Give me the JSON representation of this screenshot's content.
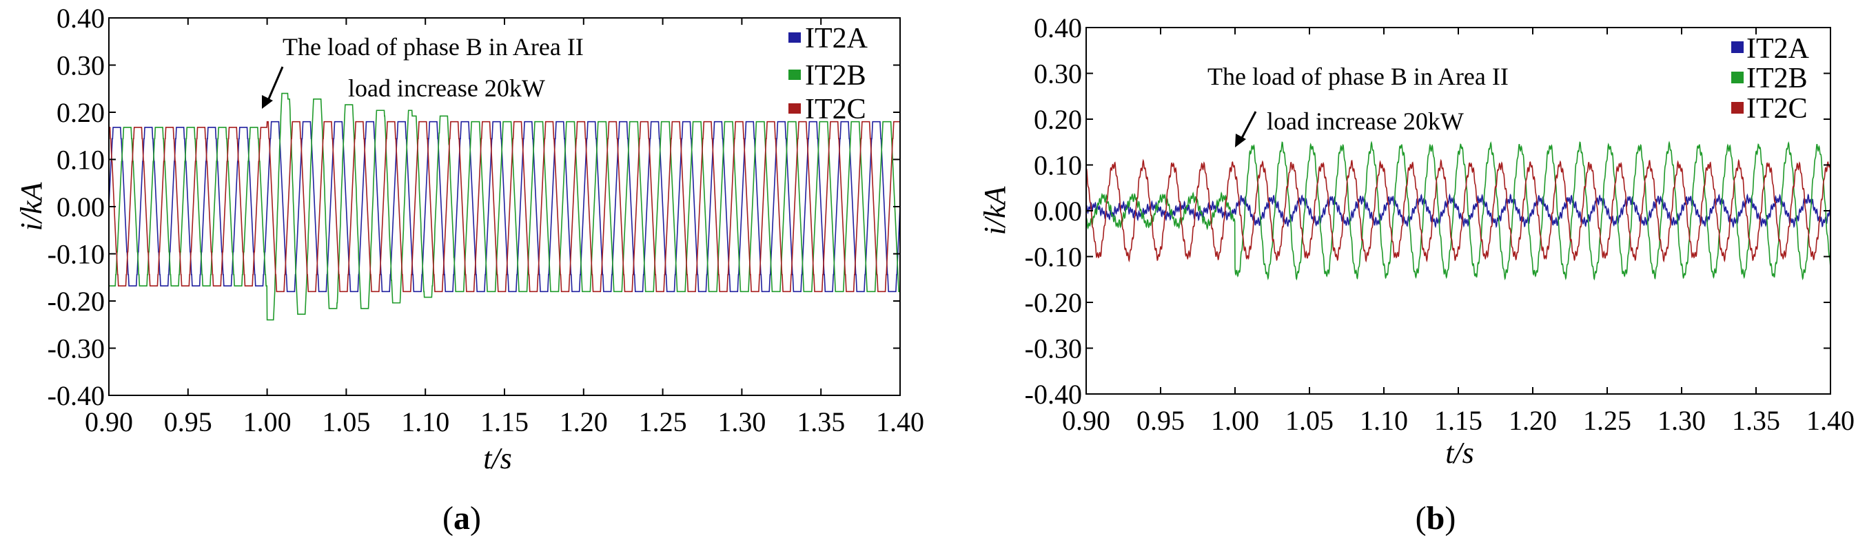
{
  "colors": {
    "IT2A": "#1f1f9e",
    "IT2B": "#1f9a2a",
    "IT2C": "#a51d1d"
  },
  "chart_data": [
    {
      "type": "line",
      "panel_label": "a",
      "caption_open": "(",
      "caption_close": ")",
      "xlabel": "t/s",
      "ylabel": "i/kA",
      "xlim": [
        0.9,
        1.4
      ],
      "ylim": [
        -0.4,
        0.4
      ],
      "xticks": [
        "0.90",
        "0.95",
        "1.00",
        "1.05",
        "1.10",
        "1.15",
        "1.20",
        "1.25",
        "1.30",
        "1.35",
        "1.40"
      ],
      "yticks": [
        "0.40",
        "0.30",
        "0.20",
        "0.10",
        "0.00",
        "-0.10",
        "-0.20",
        "-0.30",
        "-0.40"
      ],
      "frequency_hz": 50,
      "event_time": 1.0,
      "annotation": [
        "The load of phase B in Area II",
        "load increase 20kW"
      ],
      "series": [
        {
          "name": "IT2A",
          "amp_before": 0.165,
          "amp_after": 0.175,
          "phase_deg": 0
        },
        {
          "name": "IT2B",
          "amp_before": 0.165,
          "amp_after": 0.185,
          "phase_deg": -120,
          "transient_peak": 0.24
        },
        {
          "name": "IT2C",
          "amp_before": 0.165,
          "amp_after": 0.175,
          "phase_deg": 120
        }
      ]
    },
    {
      "type": "line",
      "panel_label": "b",
      "caption_open": "(",
      "caption_close": ")",
      "xlabel": "t/s",
      "ylabel": "i/kA",
      "xlim": [
        0.9,
        1.4
      ],
      "ylim": [
        -0.4,
        0.4
      ],
      "xticks": [
        "0.90",
        "0.95",
        "1.00",
        "1.05",
        "1.10",
        "1.15",
        "1.20",
        "1.25",
        "1.30",
        "1.35",
        "1.40"
      ],
      "yticks": [
        "0.40",
        "0.30",
        "0.20",
        "0.10",
        "0.00",
        "-0.10",
        "-0.20",
        "-0.30",
        "-0.40"
      ],
      "frequency_hz": 50,
      "event_time": 1.0,
      "annotation": [
        "The load of phase B in Area II",
        "load increase 20kW"
      ],
      "series": [
        {
          "name": "IT2A",
          "amp_before": 0.01,
          "amp_after": 0.025,
          "phase_deg": 0
        },
        {
          "name": "IT2B",
          "amp_before": 0.03,
          "amp_after": 0.14,
          "phase_deg": -120
        },
        {
          "name": "IT2C",
          "amp_before": 0.1,
          "amp_after": 0.1,
          "phase_deg": 120
        }
      ]
    }
  ]
}
